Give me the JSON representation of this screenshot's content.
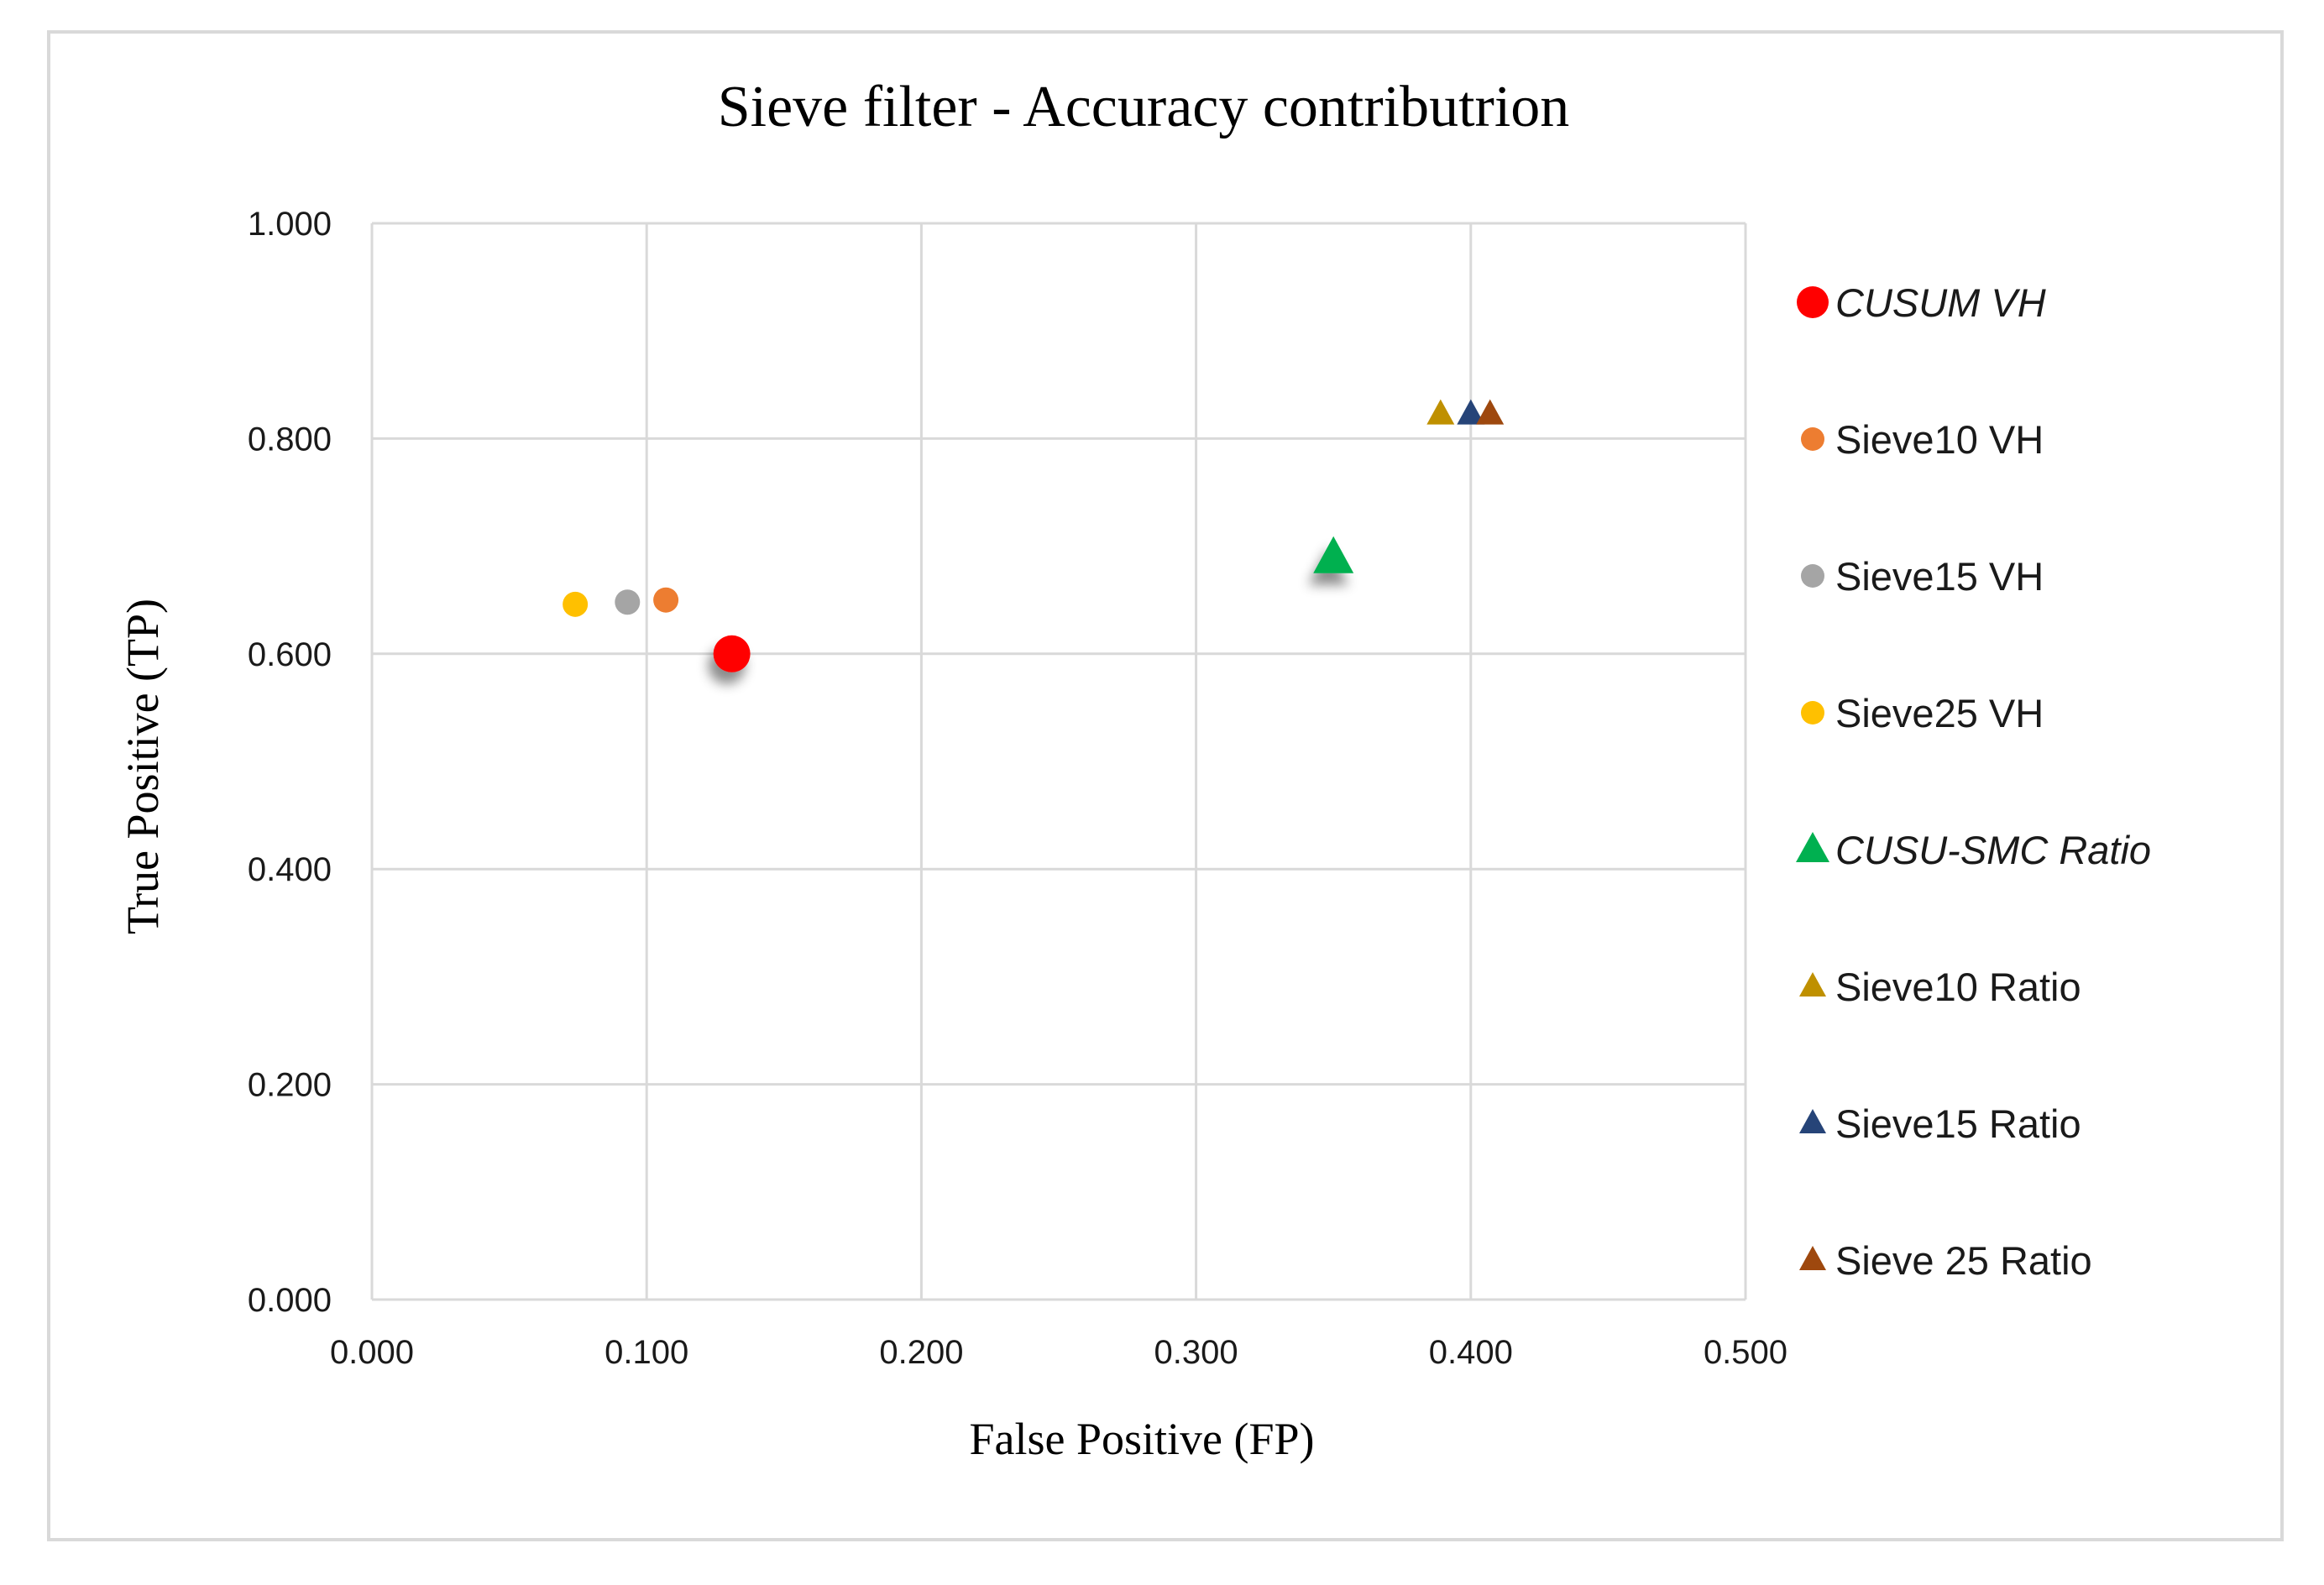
{
  "chart_data": {
    "type": "scatter",
    "title": "Sieve filter - Accuracy contributrion",
    "xlabel": "False Positive (FP)",
    "ylabel": "True Positive (TP)",
    "xlim": [
      0,
      0.5
    ],
    "ylim": [
      0,
      1
    ],
    "x_ticks": [
      "0.000",
      "0.100",
      "0.200",
      "0.300",
      "0.400",
      "0.500"
    ],
    "y_ticks": [
      "0.000",
      "0.200",
      "0.400",
      "0.600",
      "0.800",
      "1.000"
    ],
    "grid": true,
    "legend_position": "right",
    "series": [
      {
        "name": "CUSUM VH",
        "marker": "circle",
        "color": "#ff0000",
        "emphasized": true,
        "italic": true,
        "points": [
          {
            "x": 0.131,
            "y": 0.6
          }
        ]
      },
      {
        "name": "Sieve10 VH",
        "marker": "circle",
        "color": "#ed7d31",
        "emphasized": false,
        "italic": false,
        "points": [
          {
            "x": 0.107,
            "y": 0.65
          }
        ]
      },
      {
        "name": "Sieve15 VH",
        "marker": "circle",
        "color": "#a5a5a5",
        "emphasized": false,
        "italic": false,
        "points": [
          {
            "x": 0.093,
            "y": 0.648
          }
        ]
      },
      {
        "name": "Sieve25 VH",
        "marker": "circle",
        "color": "#ffc000",
        "emphasized": false,
        "italic": false,
        "points": [
          {
            "x": 0.074,
            "y": 0.646
          }
        ]
      },
      {
        "name": "CUSU-SMC Ratio",
        "marker": "triangle",
        "color": "#00b050",
        "emphasized": true,
        "italic": true,
        "points": [
          {
            "x": 0.35,
            "y": 0.688
          }
        ]
      },
      {
        "name": "Sieve10 Ratio",
        "marker": "triangle",
        "color": "#bf9000",
        "emphasized": false,
        "italic": false,
        "points": [
          {
            "x": 0.389,
            "y": 0.822
          }
        ]
      },
      {
        "name": "Sieve15 Ratio",
        "marker": "triangle",
        "color": "#264478",
        "emphasized": false,
        "italic": false,
        "points": [
          {
            "x": 0.4,
            "y": 0.822
          }
        ]
      },
      {
        "name": "Sieve 25 Ratio",
        "marker": "triangle",
        "color": "#9e480e",
        "emphasized": false,
        "italic": false,
        "points": [
          {
            "x": 0.407,
            "y": 0.822
          }
        ]
      }
    ]
  }
}
